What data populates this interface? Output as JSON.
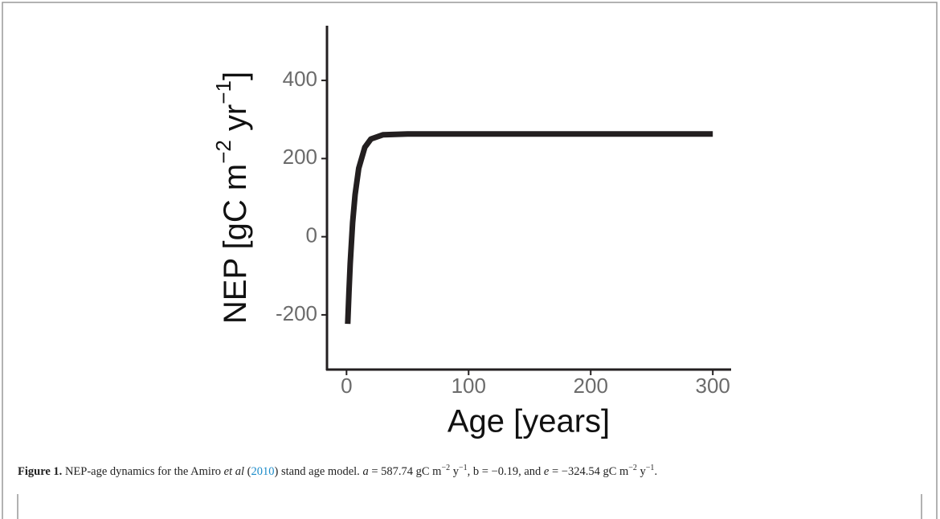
{
  "chart_data": {
    "type": "line",
    "xlabel": "Age [years]",
    "ylabel_parts": [
      "NEP [gC m",
      "−2",
      " yr",
      "−1",
      "]"
    ],
    "x": [
      1,
      2,
      3,
      5,
      7,
      10,
      15,
      20,
      30,
      50,
      100,
      200,
      300
    ],
    "series": [
      {
        "color": "#231f20",
        "values": [
          -223,
          -139,
          -69,
          36,
          108,
          175,
          229,
          250,
          261,
          263,
          263,
          263,
          263
        ]
      }
    ],
    "xlim": [
      -16,
      315
    ],
    "xticks": [
      0,
      100,
      200,
      300
    ],
    "ylim": [
      -340,
      540
    ],
    "yticks": [
      -200,
      0,
      200,
      400
    ]
  },
  "caption": {
    "segments": [
      "Figure 1.",
      " NEP-age dynamics for the Amiro ",
      "et al",
      " (",
      "2010",
      ") stand age model. ",
      "a",
      " = 587.74 gC m",
      "−2",
      " y",
      "−1",
      ", b = −0.19, and ",
      "e",
      " = −324.54 gC m",
      "−2",
      " y",
      "−1",
      "."
    ]
  }
}
